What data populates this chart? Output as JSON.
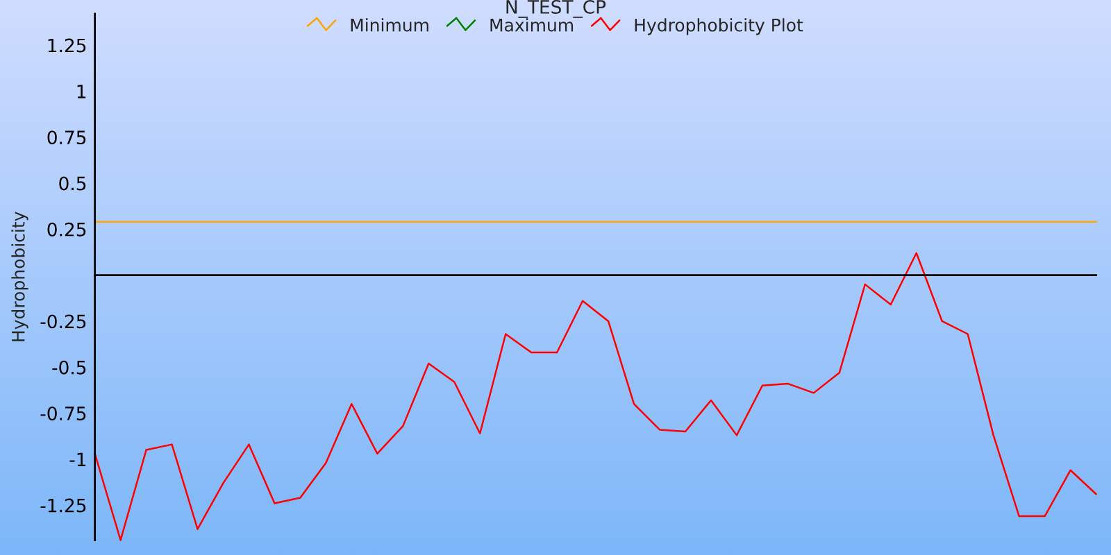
{
  "chart_data": {
    "type": "line",
    "title": "N_TEST_CP",
    "ylabel": "Hydrophobicity",
    "categories": [
      null,
      null,
      null,
      null,
      null,
      null,
      null,
      null,
      null,
      null,
      null,
      null,
      null,
      null,
      null,
      null,
      null,
      null,
      null,
      null,
      null,
      null,
      null,
      null,
      null,
      null,
      null,
      null,
      null,
      null,
      null,
      null,
      null,
      null,
      null,
      null,
      null,
      null,
      null,
      null
    ],
    "series": [
      {
        "name": "Minimum",
        "color": "#ffa500",
        "values": [
          0.29,
          0.29,
          0.29,
          0.29,
          0.29,
          0.29,
          0.29,
          0.29,
          0.29,
          0.29,
          0.29,
          0.29,
          0.29,
          0.29,
          0.29,
          0.29,
          0.29,
          0.29,
          0.29,
          0.29,
          0.29,
          0.29,
          0.29,
          0.29,
          0.29,
          0.29,
          0.29,
          0.29,
          0.29,
          0.29,
          0.29,
          0.29,
          0.29,
          0.29,
          0.29,
          0.29,
          0.29,
          0.29,
          0.29,
          0.29
        ]
      },
      {
        "name": "Maximum",
        "color": "#008000",
        "values": [
          null,
          null,
          null,
          null,
          null,
          null,
          null,
          null,
          null,
          null,
          null,
          null,
          null,
          null,
          null,
          null,
          null,
          null,
          null,
          null,
          null,
          null,
          null,
          null,
          null,
          null,
          null,
          null,
          null,
          null,
          null,
          null,
          null,
          null,
          null,
          null,
          null,
          null,
          null,
          null
        ]
      },
      {
        "name": "Hydrophobicity Plot",
        "color": "#ff0000",
        "values": [
          -0.97,
          -1.44,
          -0.95,
          -0.92,
          -1.38,
          -1.13,
          -0.92,
          -1.24,
          -1.21,
          -1.02,
          -0.7,
          -0.97,
          -0.82,
          -0.48,
          -0.58,
          -0.86,
          -0.32,
          -0.42,
          -0.42,
          -0.14,
          -0.25,
          -0.7,
          -0.84,
          -0.85,
          -0.68,
          -0.87,
          -0.6,
          -0.59,
          -0.64,
          -0.53,
          -0.05,
          -0.16,
          0.12,
          -0.25,
          -0.32,
          -0.87,
          -1.31,
          -1.31,
          -1.06,
          -1.19
        ]
      }
    ],
    "ylim": [
      -1.44,
      1.42
    ],
    "yticks": [
      -1.25,
      -1,
      -0.75,
      -0.5,
      -0.25,
      0.25,
      0.5,
      0.75,
      1,
      1.25
    ],
    "legend": "top"
  }
}
